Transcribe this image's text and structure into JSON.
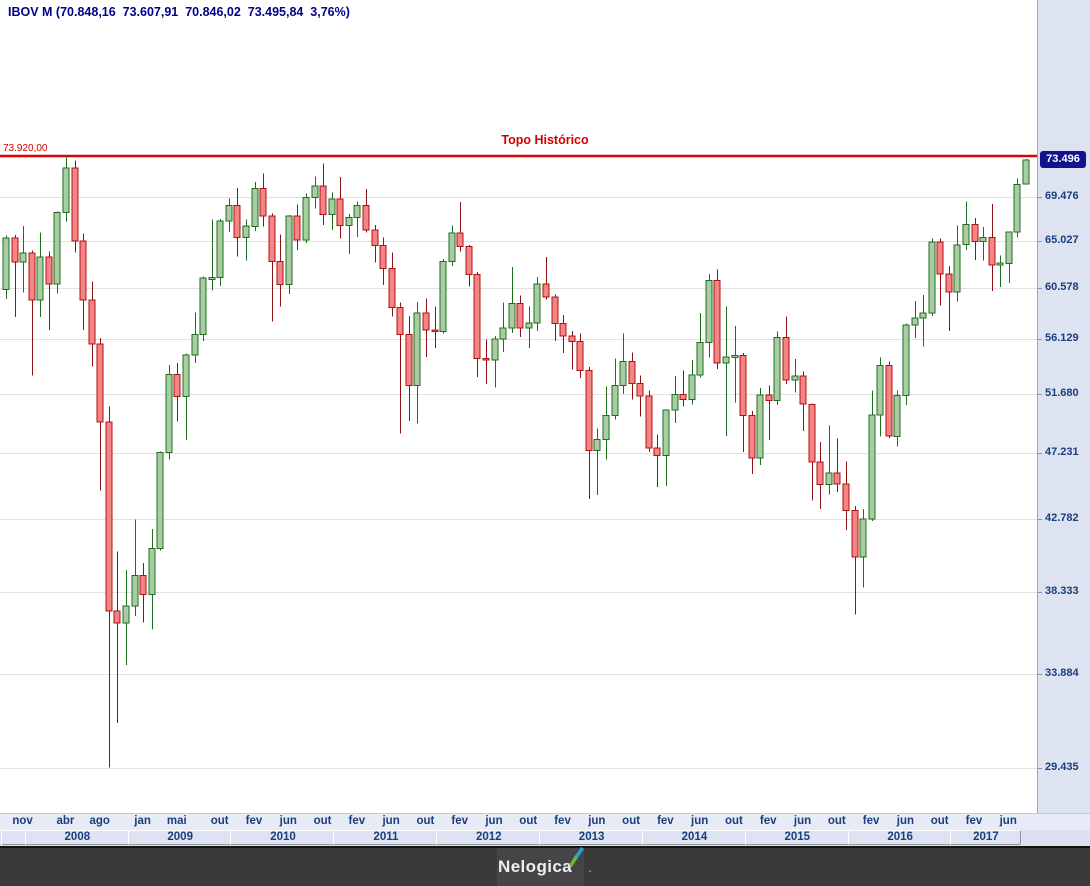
{
  "header": {
    "title": "IBOV M (70.848,16  73.607,91  70.846,02  73.495,84  3,76%)",
    "symbol": "IBOV",
    "timeframe": "M",
    "open": "70.848,16",
    "high": "73.607,91",
    "low": "70.846,02",
    "close": "73.495,84",
    "change_pct": "3,76%"
  },
  "annotation": {
    "label": "Topo Histórico",
    "price_label": "73.920,00",
    "price": 73920
  },
  "price_axis": {
    "current": {
      "label": "73.496",
      "value": 73496
    },
    "ticks": [
      {
        "value": 69476,
        "label": "69.476"
      },
      {
        "value": 65027,
        "label": "65.027"
      },
      {
        "value": 60578,
        "label": "60.578"
      },
      {
        "value": 56129,
        "label": "56.129"
      },
      {
        "value": 51680,
        "label": "51.680"
      },
      {
        "value": 47231,
        "label": "47.231"
      },
      {
        "value": 42782,
        "label": "42.782"
      },
      {
        "value": 38333,
        "label": "38.333"
      },
      {
        "value": 33884,
        "label": "33.884"
      },
      {
        "value": 29435,
        "label": "29.435"
      }
    ]
  },
  "time_axis": {
    "month_labels": [
      {
        "label": "nov",
        "index": 1
      },
      {
        "label": "abr",
        "index": 6
      },
      {
        "label": "ago",
        "index": 10
      },
      {
        "label": "jan",
        "index": 15
      },
      {
        "label": "mai",
        "index": 19
      },
      {
        "label": "out",
        "index": 24
      },
      {
        "label": "fev",
        "index": 28
      },
      {
        "label": "jun",
        "index": 32
      },
      {
        "label": "out",
        "index": 36
      },
      {
        "label": "fev",
        "index": 40
      },
      {
        "label": "jun",
        "index": 44
      },
      {
        "label": "out",
        "index": 48
      },
      {
        "label": "fev",
        "index": 52
      },
      {
        "label": "jun",
        "index": 56
      },
      {
        "label": "out",
        "index": 60
      },
      {
        "label": "fev",
        "index": 64
      },
      {
        "label": "jun",
        "index": 68
      },
      {
        "label": "out",
        "index": 72
      },
      {
        "label": "fev",
        "index": 76
      },
      {
        "label": "jun",
        "index": 80
      },
      {
        "label": "out",
        "index": 84
      },
      {
        "label": "fev",
        "index": 88
      },
      {
        "label": "jun",
        "index": 92
      },
      {
        "label": "out",
        "index": 96
      },
      {
        "label": "fev",
        "index": 100
      },
      {
        "label": "jun",
        "index": 104
      },
      {
        "label": "out",
        "index": 108
      },
      {
        "label": "fev",
        "index": 112
      },
      {
        "label": "jun",
        "index": 116
      }
    ],
    "years": [
      {
        "label": "",
        "from": 0,
        "to": 2
      },
      {
        "label": "2008",
        "from": 3,
        "to": 14
      },
      {
        "label": "2009",
        "from": 15,
        "to": 26
      },
      {
        "label": "2010",
        "from": 27,
        "to": 38
      },
      {
        "label": "2011",
        "from": 39,
        "to": 50
      },
      {
        "label": "2012",
        "from": 51,
        "to": 62
      },
      {
        "label": "2013",
        "from": 63,
        "to": 74
      },
      {
        "label": "2014",
        "from": 75,
        "to": 86
      },
      {
        "label": "2015",
        "from": 87,
        "to": 98
      },
      {
        "label": "2016",
        "from": 99,
        "to": 110
      },
      {
        "label": "2017",
        "from": 111,
        "to": 118
      }
    ]
  },
  "footer": {
    "brand": "Nelogica"
  },
  "colors": {
    "up_fill": "#a9cda3",
    "up_stroke": "#1e6e1e",
    "down_fill": "#f58485",
    "down_stroke": "#b01113",
    "down_wick": "#8e1111",
    "hline": "#e00000",
    "grid": "#e1e1e1",
    "axis_bg": "#dde3f0",
    "axis_text": "#1b3e7d",
    "title_text": "#000088",
    "tag_bg": "#12128f"
  },
  "chart_data": {
    "type": "candlestick",
    "symbol": "IBOV",
    "timeframe": "monthly",
    "scale": "log",
    "x_start": "2007-10",
    "x_end": "2017-09",
    "ylim": [
      27500,
      93500
    ],
    "grid": "horizontal",
    "columns": [
      "month",
      "open",
      "high",
      "low",
      "close"
    ],
    "annotations": [
      {
        "type": "hline",
        "value": 73920,
        "label": "Topo Histórico"
      }
    ],
    "candles": [
      [
        "out/07",
        60465,
        65600,
        59600,
        65317
      ],
      [
        "nov/07",
        65317,
        65650,
        58000,
        63006
      ],
      [
        "dez/07",
        63006,
        66530,
        60200,
        63886
      ],
      [
        "jan/08",
        63886,
        64100,
        53100,
        59490
      ],
      [
        "fev/08",
        59490,
        65900,
        58000,
        63489
      ],
      [
        "mar/08",
        63489,
        64040,
        56900,
        60968
      ],
      [
        "abr/08",
        60968,
        68000,
        60100,
        67868
      ],
      [
        "mai/08",
        67868,
        73920,
        67000,
        72593
      ],
      [
        "jun/08",
        72593,
        73400,
        63900,
        65018
      ],
      [
        "jul/08",
        65018,
        65800,
        56900,
        59505
      ],
      [
        "ago/08",
        59505,
        61200,
        53850,
        55680
      ],
      [
        "set/08",
        55680,
        56200,
        44670,
        49541
      ],
      [
        "out/08",
        49541,
        50700,
        29435,
        37257
      ],
      [
        "nov/08",
        37257,
        40750,
        31480,
        36596
      ],
      [
        "dez/08",
        36596,
        39620,
        34340,
        37550
      ],
      [
        "jan/09",
        37550,
        42760,
        36980,
        39301
      ],
      [
        "fev/09",
        39301,
        40040,
        36630,
        38183
      ],
      [
        "mar/09",
        38183,
        42150,
        36235,
        40926
      ],
      [
        "abr/09",
        40926,
        47370,
        40800,
        47290
      ],
      [
        "mai/09",
        47290,
        53960,
        46810,
        53198
      ],
      [
        "jun/09",
        53198,
        54140,
        49550,
        51466
      ],
      [
        "jul/09",
        51466,
        54900,
        48190,
        54766
      ],
      [
        "ago/09",
        54766,
        58380,
        54110,
        56489
      ],
      [
        "set/09",
        56489,
        61670,
        55950,
        61518
      ],
      [
        "out/09",
        61518,
        67180,
        60380,
        61546
      ],
      [
        "nov/09",
        61546,
        67220,
        60800,
        67044
      ],
      [
        "dez/09",
        67044,
        69350,
        65930,
        68588
      ],
      [
        "jan/10",
        68588,
        70450,
        63530,
        65402
      ],
      [
        "fev/10",
        65402,
        67160,
        63170,
        66503
      ],
      [
        "mar/10",
        66503,
        71090,
        66040,
        70372
      ],
      [
        "abr/10",
        70372,
        71980,
        66470,
        67529
      ],
      [
        "mai/10",
        67529,
        67790,
        57630,
        63046
      ],
      [
        "jun/10",
        63046,
        65680,
        58940,
        60936
      ],
      [
        "jul/10",
        60936,
        67620,
        60070,
        67515
      ],
      [
        "ago/10",
        67515,
        68700,
        64170,
        65145
      ],
      [
        "set/10",
        65145,
        69850,
        64820,
        69430
      ],
      [
        "out/10",
        69430,
        71680,
        68310,
        70673
      ],
      [
        "nov/10",
        70673,
        73100,
        66630,
        67705
      ],
      [
        "dez/10",
        67705,
        69980,
        66100,
        69305
      ],
      [
        "jan/11",
        69305,
        71630,
        65300,
        66575
      ],
      [
        "fev/11",
        66575,
        67760,
        63800,
        67383
      ],
      [
        "mar/11",
        67383,
        69000,
        65440,
        68587
      ],
      [
        "abr/11",
        68587,
        70350,
        65860,
        66133
      ],
      [
        "mai/11",
        66133,
        66630,
        62980,
        64620
      ],
      [
        "jun/11",
        64620,
        65360,
        60850,
        62404
      ],
      [
        "jul/11",
        62404,
        63900,
        58030,
        58823
      ],
      [
        "ago/11",
        58823,
        59280,
        48670,
        56495
      ],
      [
        "set/11",
        56495,
        58100,
        49600,
        52324
      ],
      [
        "out/11",
        52324,
        59350,
        49400,
        58338
      ],
      [
        "nov/11",
        58338,
        59630,
        54600,
        56874
      ],
      [
        "dez/11",
        56874,
        58930,
        55380,
        56754
      ],
      [
        "jan/12",
        56754,
        63300,
        56600,
        63072
      ],
      [
        "fev/12",
        63072,
        66550,
        62650,
        65812
      ],
      [
        "mar/12",
        65812,
        68970,
        64000,
        64511
      ],
      [
        "abr/12",
        64511,
        64640,
        60740,
        61820
      ],
      [
        "mai/12",
        61820,
        62070,
        52990,
        54490
      ],
      [
        "jun/12",
        54490,
        56060,
        52420,
        54355
      ],
      [
        "jul/12",
        54355,
        56350,
        52170,
        56097
      ],
      [
        "ago/12",
        56097,
        59280,
        55040,
        57061
      ],
      [
        "set/12",
        57061,
        62550,
        56620,
        59176
      ],
      [
        "out/12",
        59176,
        59900,
        56280,
        57068
      ],
      [
        "nov/12",
        57068,
        58950,
        55360,
        57474
      ],
      [
        "dez/12",
        57474,
        61620,
        56810,
        60952
      ],
      [
        "jan/13",
        60952,
        63470,
        59560,
        59761
      ],
      [
        "fev/13",
        59761,
        60000,
        55960,
        57424
      ],
      [
        "mar/13",
        57424,
        58200,
        54930,
        56352
      ],
      [
        "abr/13",
        56352,
        56800,
        53600,
        55910
      ],
      [
        "mai/13",
        55910,
        56590,
        52900,
        53506
      ],
      [
        "jun/13",
        53506,
        53790,
        44110,
        47457
      ],
      [
        "jul/13",
        47457,
        49030,
        44370,
        48234
      ],
      [
        "ago/13",
        48234,
        52250,
        46810,
        50011
      ],
      [
        "set/13",
        50011,
        54500,
        49720,
        52338
      ],
      [
        "out/13",
        52338,
        56590,
        51640,
        54256
      ],
      [
        "nov/13",
        54256,
        54980,
        51220,
        52482
      ],
      [
        "dez/13",
        52482,
        53110,
        49940,
        51507
      ],
      [
        "jan/14",
        51507,
        51940,
        47320,
        47638
      ],
      [
        "fev/14",
        47638,
        48590,
        44900,
        47094
      ],
      [
        "mar/14",
        47094,
        50460,
        44960,
        50414
      ],
      [
        "abr/14",
        50414,
        53080,
        49450,
        51626
      ],
      [
        "mai/14",
        51626,
        53500,
        50690,
        51239
      ],
      [
        "jun/14",
        51239,
        54380,
        50840,
        53168
      ],
      [
        "jul/14",
        53168,
        58350,
        52940,
        55829
      ],
      [
        "ago/14",
        55829,
        61900,
        54570,
        61288
      ],
      [
        "set/14",
        61288,
        62300,
        53640,
        54116
      ],
      [
        "out/14",
        54116,
        58950,
        48500,
        54629
      ],
      [
        "nov/14",
        54629,
        57210,
        51000,
        54724
      ],
      [
        "dez/14",
        54724,
        54930,
        47320,
        50007
      ],
      [
        "jan/15",
        50007,
        50350,
        45800,
        46907
      ],
      [
        "fev/15",
        46907,
        52120,
        46420,
        51583
      ],
      [
        "mar/15",
        51583,
        52320,
        48200,
        51150
      ],
      [
        "abr/15",
        51150,
        56750,
        50820,
        56229
      ],
      [
        "mai/15",
        56229,
        58050,
        52420,
        52760
      ],
      [
        "jun/15",
        52760,
        54450,
        51780,
        53080
      ],
      [
        "jul/15",
        53080,
        53450,
        48870,
        50864
      ],
      [
        "ago/15",
        50864,
        50930,
        43990,
        46625
      ],
      [
        "set/15",
        46625,
        48070,
        43450,
        45059
      ],
      [
        "out/15",
        45059,
        49250,
        44400,
        45868
      ],
      [
        "nov/15",
        45868,
        48290,
        44580,
        45120
      ],
      [
        "dez/15",
        45120,
        46650,
        42090,
        43349
      ],
      [
        "jan/16",
        43349,
        43640,
        37050,
        40405
      ],
      [
        "fev/16",
        40405,
        43450,
        38600,
        42793
      ],
      [
        "mar/16",
        42793,
        51940,
        42650,
        50055
      ],
      [
        "abr/16",
        50055,
        54590,
        48450,
        53910
      ],
      [
        "mai/16",
        53910,
        54250,
        48350,
        48471
      ],
      [
        "jun/16",
        48471,
        51910,
        47730,
        51526
      ],
      [
        "jul/16",
        51526,
        57450,
        50800,
        57308
      ],
      [
        "ago/16",
        57308,
        59430,
        56180,
        57901
      ],
      [
        "set/16",
        57901,
        59960,
        55470,
        58367
      ],
      [
        "out/16",
        58367,
        65300,
        58080,
        64924
      ],
      [
        "nov/16",
        64924,
        65270,
        59000,
        61906
      ],
      [
        "dez/16",
        61906,
        62650,
        56800,
        60227
      ],
      [
        "jan/17",
        60227,
        66590,
        59370,
        64670
      ],
      [
        "fev/17",
        64670,
        69050,
        64160,
        66662
      ],
      [
        "mar/17",
        66662,
        67330,
        63190,
        64984
      ],
      [
        "abr/17",
        64984,
        66430,
        63160,
        65403
      ],
      [
        "mai/17",
        65403,
        68790,
        60310,
        62711
      ],
      [
        "jun/17",
        62711,
        63630,
        60680,
        62899
      ],
      [
        "jul/17",
        62899,
        66000,
        61060,
        65920
      ],
      [
        "ago/17",
        65920,
        71430,
        65400,
        70835
      ],
      [
        "set/17",
        70848,
        73608,
        70846,
        73496
      ]
    ]
  }
}
